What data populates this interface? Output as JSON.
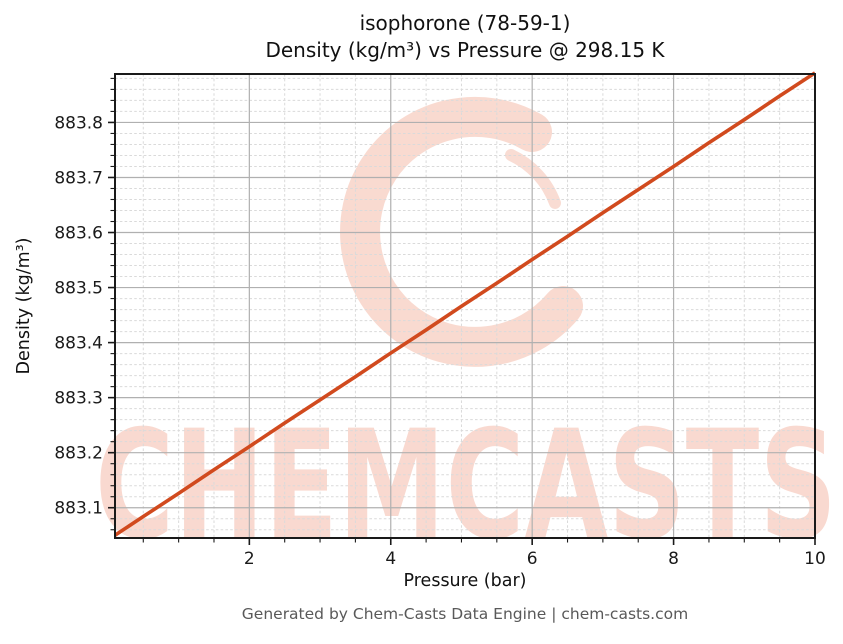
{
  "footer": {
    "text": "Generated by Chem-Casts Data Engine | chem-casts.com",
    "color": "#595959"
  },
  "watermark": {
    "text": "CHEMCASTS",
    "logo": "chemcasts-c-swirl",
    "color": "#f8d3c8"
  },
  "colors": {
    "line": "#d14a1e",
    "major_grid": "#b0b0b0",
    "minor_grid": "#dadada",
    "axis": "#1a1a1a",
    "tick_label": "#1a1a1a"
  },
  "chart_data": {
    "type": "line",
    "title": "isophorone (78-59-1)",
    "subtitle": "Density (kg/m³) vs Pressure @ 298.15 K",
    "xlabel": "Pressure (bar)",
    "ylabel": "Density (kg/m³)",
    "xlim": [
      0.1,
      10.0
    ],
    "ylim": [
      883.045,
      883.888
    ],
    "x_major_ticks": [
      2,
      4,
      6,
      8,
      10
    ],
    "x_tick_labels": [
      "2",
      "4",
      "6",
      "8",
      "10"
    ],
    "x_minor_step": 0.5,
    "y_major_ticks": [
      883.1,
      883.2,
      883.3,
      883.4,
      883.5,
      883.6,
      883.7,
      883.8
    ],
    "y_tick_labels": [
      "883.1",
      "883.2",
      "883.3",
      "883.4",
      "883.5",
      "883.6",
      "883.7",
      "883.8"
    ],
    "y_minor_step": 0.02,
    "grid": true,
    "legend": false,
    "series": [
      {
        "name": "Density @ 298.15 K",
        "color": "#d14a1e",
        "x": [
          0.1,
          0.5,
          1.0,
          1.5,
          2.0,
          2.5,
          3.0,
          3.5,
          4.0,
          4.5,
          5.0,
          5.5,
          6.0,
          6.5,
          7.0,
          7.5,
          8.0,
          8.5,
          9.0,
          9.5,
          10.0
        ],
        "y": [
          883.05,
          883.084,
          883.126,
          883.169,
          883.211,
          883.254,
          883.296,
          883.338,
          883.381,
          883.423,
          883.466,
          883.508,
          883.551,
          883.593,
          883.636,
          883.678,
          883.72,
          883.763,
          883.805,
          883.848,
          883.89
        ]
      }
    ]
  }
}
